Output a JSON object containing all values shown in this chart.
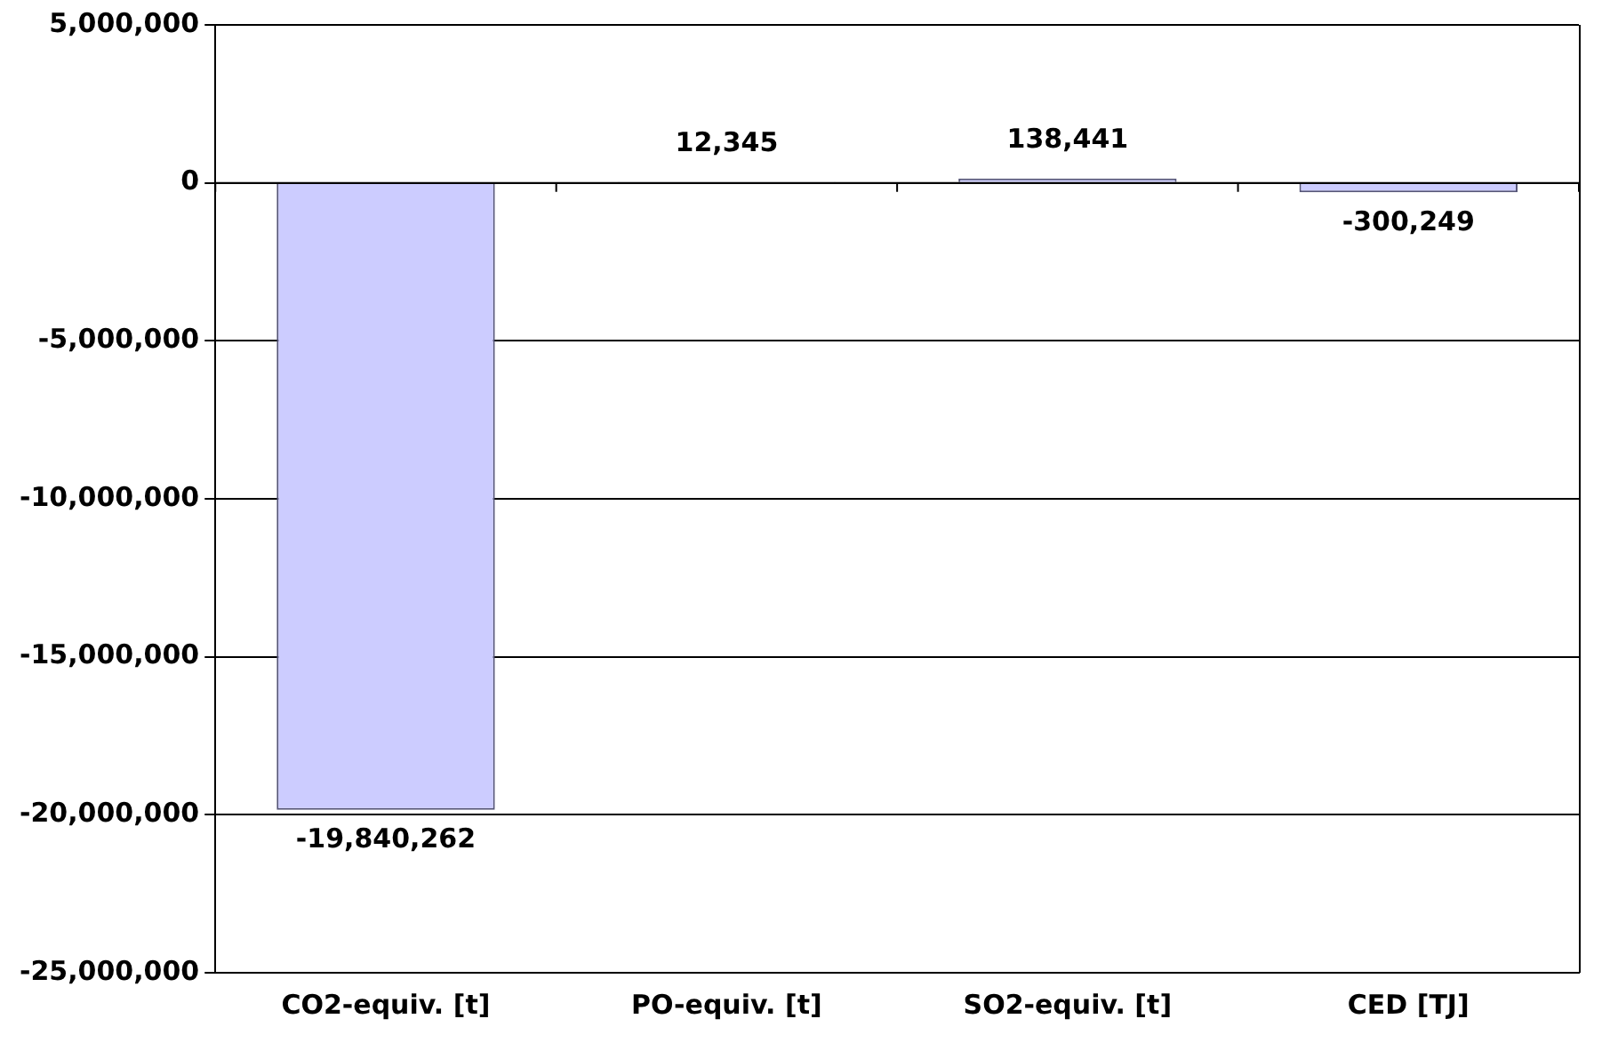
{
  "chart_data": {
    "type": "bar",
    "categories": [
      "CO2-equiv. [t]",
      "PO-equiv. [t]",
      "SO2-equiv. [t]",
      "CED [TJ]"
    ],
    "values": [
      -19840262,
      12345,
      138441,
      -300249
    ],
    "value_labels": [
      "-19,840,262",
      "12,345",
      "138,441",
      "-300,249"
    ],
    "color": "#ccccff",
    "ylim": [
      -25000000,
      5000000
    ],
    "yticks": [
      {
        "value": -25000000,
        "label": "-25,000,000"
      },
      {
        "value": -20000000,
        "label": "-20,000,000"
      },
      {
        "value": -15000000,
        "label": "-15,000,000"
      },
      {
        "value": -10000000,
        "label": "-10,000,000"
      },
      {
        "value": -5000000,
        "label": "-5,000,000"
      },
      0,
      {
        "value": 5000000,
        "label": "5,000,000"
      }
    ],
    "grid": "y",
    "legend": false
  }
}
